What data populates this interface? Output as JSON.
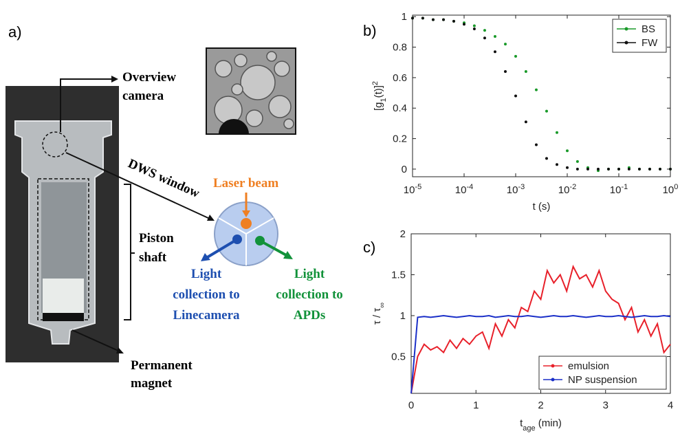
{
  "panel_a": {
    "label": "a)",
    "overview_camera": [
      "Overview",
      "camera"
    ],
    "dws_window": "DWS window",
    "piston_shaft": [
      "Piston",
      "shaft"
    ],
    "permanent_magnet": [
      "Permanent",
      "magnet"
    ],
    "laser_beam": "Laser beam",
    "linecamera": [
      "Light",
      "collection to",
      "Linecamera"
    ],
    "apds": [
      "Light",
      "collection to",
      "APDs"
    ]
  },
  "chart_data": [
    {
      "type": "scatter",
      "panel_label": "b)",
      "x_label": {
        "text": "t (s)"
      },
      "y_label": {
        "text": "[g",
        "sub": "1",
        "suffix": "(t)]",
        "sup": "2"
      },
      "xscale": "log",
      "xlim": [
        1e-05,
        1
      ],
      "ylim": [
        -0.05,
        1.01
      ],
      "xticks": [
        {
          "value": 1e-05,
          "label": "10",
          "exponent": "-5"
        },
        {
          "value": 0.0001,
          "label": "10",
          "exponent": "-4"
        },
        {
          "value": 0.001,
          "label": "10",
          "exponent": "-3"
        },
        {
          "value": 0.01,
          "label": "10",
          "exponent": "-2"
        },
        {
          "value": 0.1,
          "label": "10",
          "exponent": "-1"
        },
        {
          "value": 1,
          "label": "10",
          "exponent": "0"
        }
      ],
      "yticks": [
        0,
        0.2,
        0.4,
        0.6,
        0.8,
        1
      ],
      "legend": "top-right",
      "x": [
        1e-05,
        1.58e-05,
        2.51e-05,
        3.98e-05,
        6.31e-05,
        0.0001,
        0.000158,
        0.000251,
        0.000398,
        0.000631,
        0.001,
        0.00158,
        0.00251,
        0.00398,
        0.00631,
        0.01,
        0.0158,
        0.0251,
        0.0398,
        0.0631,
        0.1,
        0.158,
        0.251,
        0.398,
        0.631,
        1
      ],
      "series": [
        {
          "name": "BS",
          "color": "#1a9a2a",
          "values": [
            0.99,
            0.99,
            0.98,
            0.98,
            0.97,
            0.96,
            0.94,
            0.91,
            0.87,
            0.82,
            0.74,
            0.64,
            0.52,
            0.38,
            0.24,
            0.12,
            0.05,
            0.01,
            -0.01,
            0,
            0,
            0.01,
            0,
            0,
            0,
            0
          ]
        },
        {
          "name": "FW",
          "color": "#111111",
          "values": [
            0.99,
            0.99,
            0.98,
            0.98,
            0.97,
            0.95,
            0.92,
            0.86,
            0.77,
            0.64,
            0.48,
            0.31,
            0.16,
            0.07,
            0.03,
            0.01,
            0,
            0,
            0,
            0,
            0,
            0,
            0,
            0,
            0,
            0
          ]
        }
      ]
    },
    {
      "type": "line",
      "panel_label": "c)",
      "x_label": {
        "text": "t",
        "sub": "age",
        "suffix": " (min)"
      },
      "y_label": {
        "text": "τ / τ",
        "sub": "∞"
      },
      "xlim": [
        0,
        4
      ],
      "ylim": [
        0.05,
        2
      ],
      "xticks": [
        0,
        1,
        2,
        3,
        4
      ],
      "yticks": [
        0.5,
        1,
        1.5,
        2
      ],
      "legend": "bottom-right",
      "x": [
        0,
        0.1,
        0.2,
        0.3,
        0.4,
        0.5,
        0.6,
        0.7,
        0.8,
        0.9,
        1,
        1.1,
        1.2,
        1.3,
        1.4,
        1.5,
        1.6,
        1.7,
        1.8,
        1.9,
        2,
        2.1,
        2.2,
        2.3,
        2.4,
        2.5,
        2.6,
        2.7,
        2.8,
        2.9,
        3,
        3.1,
        3.2,
        3.3,
        3.4,
        3.5,
        3.6,
        3.7,
        3.8,
        3.9,
        4
      ],
      "series": [
        {
          "name": "emulsion",
          "color": "#e8202a",
          "values": [
            0.05,
            0.5,
            0.65,
            0.58,
            0.62,
            0.55,
            0.7,
            0.6,
            0.72,
            0.65,
            0.75,
            0.8,
            0.6,
            0.9,
            0.75,
            0.95,
            0.85,
            1.1,
            1.05,
            1.3,
            1.2,
            1.55,
            1.4,
            1.5,
            1.3,
            1.6,
            1.45,
            1.5,
            1.35,
            1.55,
            1.3,
            1.2,
            1.15,
            0.95,
            1.1,
            0.8,
            0.95,
            0.75,
            0.9,
            0.55,
            0.65
          ]
        },
        {
          "name": "NP suspension",
          "color": "#1a2fc8",
          "values": [
            0.05,
            0.98,
            0.99,
            0.98,
            0.99,
            1,
            0.99,
            0.98,
            0.99,
            1,
            0.99,
            0.99,
            1,
            0.98,
            0.99,
            1,
            0.99,
            0.99,
            1,
            0.99,
            0.98,
            0.99,
            1,
            0.99,
            0.99,
            1,
            0.99,
            0.98,
            0.99,
            1,
            0.99,
            0.99,
            1,
            0.99,
            0.98,
            0.99,
            1,
            0.99,
            0.99,
            1,
            0.99
          ]
        }
      ]
    }
  ]
}
